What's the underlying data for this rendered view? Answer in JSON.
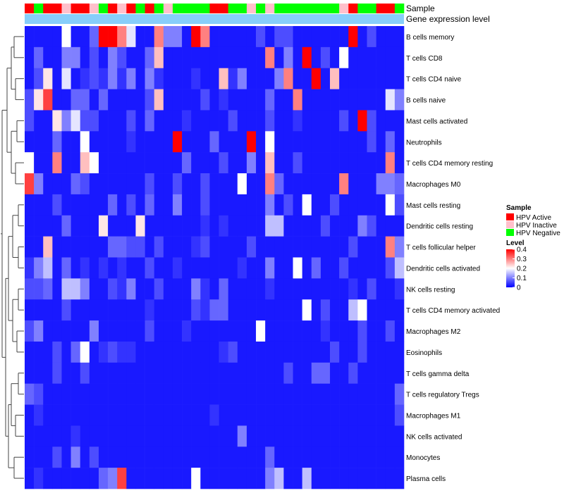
{
  "chart_data": {
    "type": "heatmap",
    "annotation_tracks": [
      "Sample",
      "Gene expression level"
    ],
    "sample_groups": [
      "A",
      "N",
      "A",
      "A",
      "I",
      "A",
      "A",
      "I",
      "N",
      "A",
      "I",
      "A",
      "N",
      "A",
      "N",
      "I",
      "N",
      "N",
      "N",
      "N",
      "A",
      "A",
      "N",
      "N",
      "I",
      "N",
      "I",
      "N",
      "N",
      "N",
      "N",
      "N",
      "N",
      "N",
      "I",
      "A",
      "N",
      "N",
      "A",
      "A",
      "N"
    ],
    "rows": [
      "B cells memory",
      "T cells CD8",
      "T cells CD4 naive",
      "B cells naive",
      "Mast cells activated",
      "Neutrophils",
      "T cells CD4 memory resting",
      "Macrophages M0",
      "Mast cells resting",
      "Dendritic cells resting",
      "T cells follicular helper",
      "Dendritic cells activated",
      "NK cells resting",
      "T cells CD4 memory activated",
      "Macrophages M2",
      "Eosinophils",
      "T cells gamma delta",
      "T cells regulatory  Tregs",
      "Macrophages M1",
      "NK cells activated",
      "Monocytes",
      "Plasma cells"
    ],
    "values": [
      [
        0.02,
        0.02,
        0.02,
        0.02,
        0.2,
        0.02,
        0.02,
        0.08,
        0.4,
        0.4,
        0.3,
        0.18,
        0.02,
        0.02,
        0.3,
        0.1,
        0.1,
        0.02,
        0.4,
        0.3,
        0.02,
        0.02,
        0.02,
        0.02,
        0.02,
        0.06,
        0.02,
        0.06,
        0.06,
        0.02,
        0.02,
        0.02,
        0.02,
        0.02,
        0.02,
        0.4,
        0.02,
        0.06,
        0.02,
        0.02,
        0.02
      ],
      [
        0.02,
        0.08,
        0.02,
        0.02,
        0.1,
        0.1,
        0.02,
        0.06,
        0.02,
        0.1,
        0.06,
        0.02,
        0.02,
        0.08,
        0.25,
        0.02,
        0.02,
        0.02,
        0.02,
        0.02,
        0.02,
        0.02,
        0.02,
        0.02,
        0.02,
        0.02,
        0.3,
        0.02,
        0.1,
        0.02,
        0.4,
        0.02,
        0.06,
        0.02,
        0.2,
        0.02,
        0.02,
        0.02,
        0.02,
        0.02,
        0.02
      ],
      [
        0.02,
        0.06,
        0.22,
        0.02,
        0.18,
        0.02,
        0.04,
        0.06,
        0.04,
        0.1,
        0.04,
        0.1,
        0.02,
        0.1,
        0.04,
        0.02,
        0.02,
        0.02,
        0.04,
        0.02,
        0.02,
        0.25,
        0.04,
        0.1,
        0.02,
        0.02,
        0.02,
        0.1,
        0.3,
        0.02,
        0.02,
        0.4,
        0.02,
        0.25,
        0.02,
        0.02,
        0.02,
        0.02,
        0.02,
        0.02,
        0.02
      ],
      [
        0.06,
        0.22,
        0.35,
        0.02,
        0.02,
        0.08,
        0.08,
        0.02,
        0.08,
        0.02,
        0.02,
        0.02,
        0.02,
        0.06,
        0.25,
        0.02,
        0.02,
        0.02,
        0.02,
        0.06,
        0.02,
        0.04,
        0.02,
        0.02,
        0.02,
        0.02,
        0.08,
        0.02,
        0.02,
        0.3,
        0.02,
        0.02,
        0.02,
        0.02,
        0.02,
        0.02,
        0.02,
        0.02,
        0.02,
        0.18,
        0.1
      ],
      [
        0.06,
        0.02,
        0.02,
        0.22,
        0.1,
        0.18,
        0.06,
        0.06,
        0.02,
        0.02,
        0.02,
        0.06,
        0.02,
        0.08,
        0.02,
        0.02,
        0.02,
        0.04,
        0.02,
        0.02,
        0.02,
        0.02,
        0.06,
        0.02,
        0.02,
        0.02,
        0.06,
        0.02,
        0.02,
        0.04,
        0.02,
        0.02,
        0.02,
        0.02,
        0.06,
        0.02,
        0.4,
        0.06,
        0.02,
        0.02,
        0.02
      ],
      [
        0.02,
        0.02,
        0.02,
        0.08,
        0.02,
        0.02,
        0.2,
        0.02,
        0.02,
        0.02,
        0.02,
        0.04,
        0.02,
        0.02,
        0.02,
        0.02,
        0.4,
        0.02,
        0.02,
        0.02,
        0.08,
        0.02,
        0.02,
        0.02,
        0.4,
        0.02,
        0.2,
        0.02,
        0.02,
        0.02,
        0.02,
        0.02,
        0.02,
        0.02,
        0.02,
        0.02,
        0.02,
        0.06,
        0.02,
        0.08,
        0.02
      ],
      [
        0.2,
        0.02,
        0.02,
        0.3,
        0.02,
        0.02,
        0.25,
        0.2,
        0.02,
        0.02,
        0.02,
        0.02,
        0.02,
        0.02,
        0.02,
        0.02,
        0.02,
        0.08,
        0.02,
        0.02,
        0.02,
        0.06,
        0.02,
        0.02,
        0.1,
        0.02,
        0.25,
        0.02,
        0.02,
        0.06,
        0.02,
        0.02,
        0.02,
        0.02,
        0.02,
        0.02,
        0.02,
        0.02,
        0.02,
        0.3,
        0.02
      ],
      [
        0.35,
        0.1,
        0.02,
        0.02,
        0.02,
        0.08,
        0.06,
        0.02,
        0.02,
        0.02,
        0.02,
        0.02,
        0.02,
        0.06,
        0.02,
        0.02,
        0.06,
        0.02,
        0.02,
        0.06,
        0.02,
        0.02,
        0.02,
        0.2,
        0.02,
        0.02,
        0.3,
        0.08,
        0.02,
        0.02,
        0.02,
        0.02,
        0.02,
        0.02,
        0.3,
        0.02,
        0.02,
        0.02,
        0.1,
        0.1,
        0.08
      ],
      [
        0.02,
        0.02,
        0.02,
        0.06,
        0.02,
        0.02,
        0.02,
        0.02,
        0.02,
        0.08,
        0.02,
        0.06,
        0.02,
        0.08,
        0.02,
        0.02,
        0.1,
        0.02,
        0.02,
        0.06,
        0.02,
        0.02,
        0.02,
        0.02,
        0.02,
        0.02,
        0.1,
        0.02,
        0.06,
        0.02,
        0.2,
        0.02,
        0.02,
        0.06,
        0.02,
        0.02,
        0.02,
        0.02,
        0.02,
        0.2,
        0.06
      ],
      [
        0.02,
        0.02,
        0.02,
        0.02,
        0.08,
        0.02,
        0.02,
        0.02,
        0.22,
        0.02,
        0.02,
        0.02,
        0.22,
        0.02,
        0.02,
        0.02,
        0.02,
        0.02,
        0.02,
        0.04,
        0.02,
        0.04,
        0.02,
        0.02,
        0.02,
        0.02,
        0.15,
        0.15,
        0.02,
        0.02,
        0.02,
        0.02,
        0.06,
        0.02,
        0.02,
        0.02,
        0.1,
        0.06,
        0.02,
        0.02,
        0.02
      ],
      [
        0.02,
        0.02,
        0.25,
        0.02,
        0.02,
        0.02,
        0.02,
        0.02,
        0.02,
        0.08,
        0.08,
        0.06,
        0.06,
        0.02,
        0.06,
        0.02,
        0.02,
        0.02,
        0.04,
        0.06,
        0.02,
        0.02,
        0.02,
        0.02,
        0.06,
        0.02,
        0.02,
        0.02,
        0.02,
        0.02,
        0.02,
        0.02,
        0.02,
        0.02,
        0.02,
        0.06,
        0.02,
        0.02,
        0.02,
        0.3,
        0.1
      ],
      [
        0.04,
        0.1,
        0.15,
        0.02,
        0.08,
        0.02,
        0.04,
        0.02,
        0.04,
        0.02,
        0.04,
        0.02,
        0.02,
        0.06,
        0.02,
        0.02,
        0.04,
        0.02,
        0.02,
        0.02,
        0.02,
        0.02,
        0.02,
        0.04,
        0.02,
        0.02,
        0.1,
        0.02,
        0.02,
        0.2,
        0.02,
        0.08,
        0.02,
        0.02,
        0.06,
        0.02,
        0.02,
        0.02,
        0.02,
        0.06,
        0.15
      ],
      [
        0.06,
        0.06,
        0.08,
        0.02,
        0.15,
        0.15,
        0.1,
        0.02,
        0.02,
        0.06,
        0.04,
        0.1,
        0.02,
        0.02,
        0.06,
        0.02,
        0.02,
        0.02,
        0.1,
        0.04,
        0.02,
        0.08,
        0.02,
        0.02,
        0.02,
        0.02,
        0.04,
        0.02,
        0.02,
        0.02,
        0.02,
        0.02,
        0.02,
        0.02,
        0.02,
        0.04,
        0.02,
        0.06,
        0.02,
        0.02,
        0.04
      ],
      [
        0.02,
        0.02,
        0.02,
        0.02,
        0.06,
        0.02,
        0.02,
        0.02,
        0.02,
        0.02,
        0.02,
        0.02,
        0.02,
        0.04,
        0.02,
        0.02,
        0.02,
        0.02,
        0.06,
        0.04,
        0.08,
        0.08,
        0.02,
        0.02,
        0.02,
        0.02,
        0.02,
        0.02,
        0.02,
        0.02,
        0.2,
        0.02,
        0.06,
        0.02,
        0.02,
        0.15,
        0.2,
        0.02,
        0.02,
        0.02,
        0.02
      ],
      [
        0.06,
        0.1,
        0.02,
        0.02,
        0.02,
        0.02,
        0.02,
        0.1,
        0.02,
        0.02,
        0.02,
        0.02,
        0.02,
        0.06,
        0.02,
        0.02,
        0.02,
        0.04,
        0.02,
        0.02,
        0.02,
        0.02,
        0.02,
        0.02,
        0.02,
        0.2,
        0.02,
        0.02,
        0.02,
        0.02,
        0.02,
        0.02,
        0.04,
        0.02,
        0.02,
        0.02,
        0.06,
        0.02,
        0.02,
        0.06,
        0.02
      ],
      [
        0.02,
        0.02,
        0.02,
        0.06,
        0.02,
        0.08,
        0.2,
        0.02,
        0.04,
        0.06,
        0.04,
        0.04,
        0.02,
        0.02,
        0.02,
        0.02,
        0.02,
        0.02,
        0.02,
        0.02,
        0.02,
        0.04,
        0.06,
        0.02,
        0.02,
        0.02,
        0.02,
        0.02,
        0.02,
        0.02,
        0.02,
        0.02,
        0.02,
        0.06,
        0.02,
        0.02,
        0.06,
        0.02,
        0.02,
        0.02,
        0.02
      ],
      [
        0.02,
        0.02,
        0.02,
        0.06,
        0.02,
        0.02,
        0.06,
        0.02,
        0.02,
        0.02,
        0.02,
        0.02,
        0.02,
        0.02,
        0.02,
        0.02,
        0.02,
        0.02,
        0.02,
        0.02,
        0.02,
        0.02,
        0.02,
        0.02,
        0.02,
        0.02,
        0.02,
        0.02,
        0.06,
        0.02,
        0.02,
        0.08,
        0.08,
        0.02,
        0.02,
        0.06,
        0.02,
        0.02,
        0.02,
        0.02,
        0.02
      ],
      [
        0.08,
        0.06,
        0.02,
        0.02,
        0.02,
        0.02,
        0.02,
        0.02,
        0.02,
        0.02,
        0.02,
        0.02,
        0.02,
        0.02,
        0.02,
        0.02,
        0.02,
        0.02,
        0.02,
        0.02,
        0.02,
        0.02,
        0.02,
        0.02,
        0.02,
        0.02,
        0.02,
        0.02,
        0.02,
        0.02,
        0.02,
        0.02,
        0.02,
        0.02,
        0.02,
        0.02,
        0.02,
        0.02,
        0.02,
        0.02,
        0.08
      ],
      [
        0.02,
        0.04,
        0.02,
        0.02,
        0.02,
        0.02,
        0.02,
        0.02,
        0.02,
        0.02,
        0.02,
        0.02,
        0.02,
        0.02,
        0.02,
        0.02,
        0.02,
        0.02,
        0.02,
        0.02,
        0.04,
        0.02,
        0.02,
        0.02,
        0.02,
        0.02,
        0.02,
        0.02,
        0.02,
        0.02,
        0.02,
        0.02,
        0.02,
        0.02,
        0.02,
        0.02,
        0.02,
        0.02,
        0.02,
        0.02,
        0.06
      ],
      [
        0.02,
        0.02,
        0.02,
        0.02,
        0.02,
        0.04,
        0.02,
        0.02,
        0.02,
        0.02,
        0.02,
        0.02,
        0.02,
        0.02,
        0.02,
        0.02,
        0.02,
        0.02,
        0.02,
        0.02,
        0.02,
        0.02,
        0.02,
        0.1,
        0.02,
        0.02,
        0.02,
        0.02,
        0.02,
        0.02,
        0.02,
        0.02,
        0.02,
        0.02,
        0.02,
        0.02,
        0.02,
        0.02,
        0.02,
        0.02,
        0.02
      ],
      [
        0.02,
        0.02,
        0.02,
        0.06,
        0.02,
        0.1,
        0.02,
        0.06,
        0.02,
        0.02,
        0.02,
        0.02,
        0.02,
        0.02,
        0.02,
        0.02,
        0.02,
        0.02,
        0.02,
        0.02,
        0.02,
        0.02,
        0.02,
        0.02,
        0.02,
        0.02,
        0.08,
        0.02,
        0.02,
        0.02,
        0.02,
        0.02,
        0.02,
        0.02,
        0.02,
        0.02,
        0.02,
        0.02,
        0.02,
        0.02,
        0.02
      ],
      [
        0.02,
        0.04,
        0.02,
        0.02,
        0.02,
        0.02,
        0.02,
        0.02,
        0.08,
        0.1,
        0.35,
        0.02,
        0.02,
        0.02,
        0.02,
        0.02,
        0.02,
        0.02,
        0.2,
        0.02,
        0.02,
        0.02,
        0.02,
        0.02,
        0.02,
        0.02,
        0.1,
        0.15,
        0.02,
        0.02,
        0.15,
        0.02,
        0.02,
        0.02,
        0.02,
        0.02,
        0.02,
        0.02,
        0.02,
        0.02,
        0.02
      ]
    ],
    "legend_sample_title": "Sample",
    "legend_sample": [
      {
        "label": "HPV Active",
        "color": "#ff0000"
      },
      {
        "label": "HPV Inactive",
        "color": "#ffc0cb"
      },
      {
        "label": "HPV Negative",
        "color": "#00ff00"
      }
    ],
    "legend_level_title": "Level",
    "legend_level_ticks": [
      0.4,
      0.3,
      0.2,
      0.1,
      0
    ],
    "level_range": [
      0,
      0.4
    ],
    "expression_color": "#87cefa",
    "color_low": "#0000ff",
    "color_mid": "#ffffff",
    "color_high": "#ff0000",
    "dendrogram": "rows",
    "legend_position": "right"
  }
}
